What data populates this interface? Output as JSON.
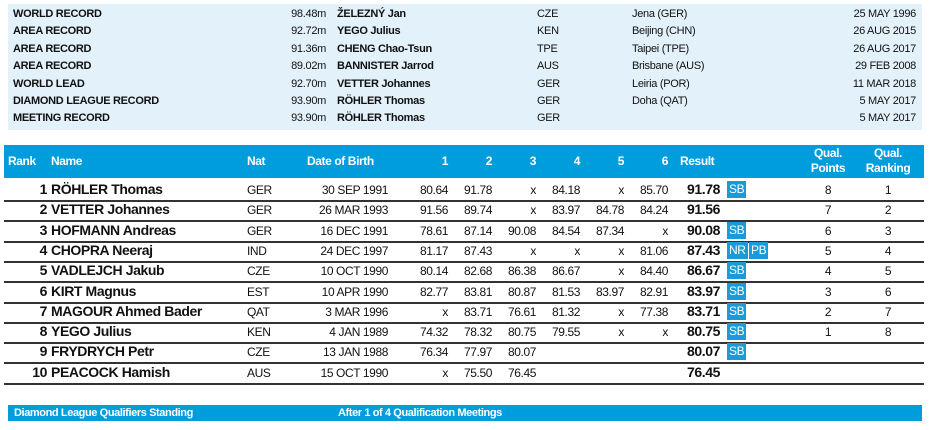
{
  "records": [
    {
      "label": "WORLD RECORD",
      "mark": "98.48m",
      "athlete": "ŽELEZNÝ Jan",
      "nat": "CZE",
      "venue": "Jena (GER)",
      "date": "25 MAY 1996"
    },
    {
      "label": "AREA RECORD",
      "mark": "92.72m",
      "athlete": "YEGO Julius",
      "nat": "KEN",
      "venue": "Beijing (CHN)",
      "date": "26 AUG 2015"
    },
    {
      "label": "AREA RECORD",
      "mark": "91.36m",
      "athlete": "CHENG Chao-Tsun",
      "nat": "TPE",
      "venue": "Taipei (TPE)",
      "date": "26 AUG 2017"
    },
    {
      "label": "AREA RECORD",
      "mark": "89.02m",
      "athlete": "BANNISTER Jarrod",
      "nat": "AUS",
      "venue": "Brisbane (AUS)",
      "date": "29 FEB 2008"
    },
    {
      "label": "WORLD LEAD",
      "mark": "92.70m",
      "athlete": "VETTER Johannes",
      "nat": "GER",
      "venue": "Leiria (POR)",
      "date": "11 MAR 2018"
    },
    {
      "label": "DIAMOND LEAGUE RECORD",
      "mark": "93.90m",
      "athlete": "RÖHLER Thomas",
      "nat": "GER",
      "venue": "Doha (QAT)",
      "date": "5 MAY 2017"
    },
    {
      "label": "MEETING RECORD",
      "mark": "93.90m",
      "athlete": "RÖHLER Thomas",
      "nat": "GER",
      "venue": "",
      "date": "5 MAY 2017"
    }
  ],
  "header": {
    "rank": "Rank",
    "name": "Name",
    "nat": "Nat",
    "dob": "Date of Birth",
    "attempts": [
      "1",
      "2",
      "3",
      "4",
      "5",
      "6"
    ],
    "result": "Result",
    "qual_points": [
      "Qual.",
      "Points"
    ],
    "qual_ranking": [
      "Qual.",
      "Ranking"
    ]
  },
  "results": [
    {
      "rank": "1",
      "name": "RÖHLER Thomas",
      "nat": "GER",
      "dob": "30 SEP 1991",
      "attempts": [
        "80.64",
        "91.78",
        "x",
        "84.18",
        "x",
        "85.70"
      ],
      "result": "91.78",
      "badges": [
        "SB"
      ],
      "qual_points": "8",
      "qual_ranking": "1"
    },
    {
      "rank": "2",
      "name": "VETTER Johannes",
      "nat": "GER",
      "dob": "26 MAR 1993",
      "attempts": [
        "91.56",
        "89.74",
        "x",
        "83.97",
        "84.78",
        "84.24"
      ],
      "result": "91.56",
      "badges": [],
      "qual_points": "7",
      "qual_ranking": "2"
    },
    {
      "rank": "3",
      "name": "HOFMANN Andreas",
      "nat": "GER",
      "dob": "16 DEC 1991",
      "attempts": [
        "78.61",
        "87.14",
        "90.08",
        "84.54",
        "87.34",
        "x"
      ],
      "result": "90.08",
      "badges": [
        "SB"
      ],
      "qual_points": "6",
      "qual_ranking": "3"
    },
    {
      "rank": "4",
      "name": "CHOPRA Neeraj",
      "nat": "IND",
      "dob": "24 DEC 1997",
      "attempts": [
        "81.17",
        "87.43",
        "x",
        "x",
        "x",
        "81.06"
      ],
      "result": "87.43",
      "badges": [
        "NR",
        "PB"
      ],
      "qual_points": "5",
      "qual_ranking": "4"
    },
    {
      "rank": "5",
      "name": "VADLEJCH Jakub",
      "nat": "CZE",
      "dob": "10 OCT 1990",
      "attempts": [
        "80.14",
        "82.68",
        "86.38",
        "86.67",
        "x",
        "84.40"
      ],
      "result": "86.67",
      "badges": [
        "SB"
      ],
      "qual_points": "4",
      "qual_ranking": "5"
    },
    {
      "rank": "6",
      "name": "KIRT Magnus",
      "nat": "EST",
      "dob": "10 APR 1990",
      "attempts": [
        "82.77",
        "83.81",
        "80.87",
        "81.53",
        "83.97",
        "82.91"
      ],
      "result": "83.97",
      "badges": [
        "SB"
      ],
      "qual_points": "3",
      "qual_ranking": "6"
    },
    {
      "rank": "7",
      "name": "MAGOUR Ahmed Bader",
      "nat": "QAT",
      "dob": "3 MAR 1996",
      "attempts": [
        "x",
        "83.71",
        "76.61",
        "81.32",
        "x",
        "77.38"
      ],
      "result": "83.71",
      "badges": [
        "SB"
      ],
      "qual_points": "2",
      "qual_ranking": "7"
    },
    {
      "rank": "8",
      "name": "YEGO Julius",
      "nat": "KEN",
      "dob": "4 JAN 1989",
      "attempts": [
        "74.32",
        "78.32",
        "80.75",
        "79.55",
        "x",
        "x"
      ],
      "result": "80.75",
      "badges": [
        "SB"
      ],
      "qual_points": "1",
      "qual_ranking": "8"
    },
    {
      "rank": "9",
      "name": "FRYDRYCH Petr",
      "nat": "CZE",
      "dob": "13 JAN 1988",
      "attempts": [
        "76.34",
        "77.97",
        "80.07",
        "",
        "",
        ""
      ],
      "result": "80.07",
      "badges": [
        "SB"
      ],
      "qual_points": "",
      "qual_ranking": ""
    },
    {
      "rank": "10",
      "name": "PEACOCK Hamish",
      "nat": "AUS",
      "dob": "15 OCT 1990",
      "attempts": [
        "x",
        "75.50",
        "76.45",
        "",
        "",
        ""
      ],
      "result": "76.45",
      "badges": [],
      "qual_points": "",
      "qual_ranking": ""
    }
  ],
  "footer": {
    "left": "Diamond League Qualifiers Standing",
    "right": "After 1 of 4 Qualification Meetings"
  },
  "colors": {
    "header_bg": "#009ddd",
    "records_bg": "#e3f1fb",
    "badge_bg": "#1a9ad6"
  }
}
